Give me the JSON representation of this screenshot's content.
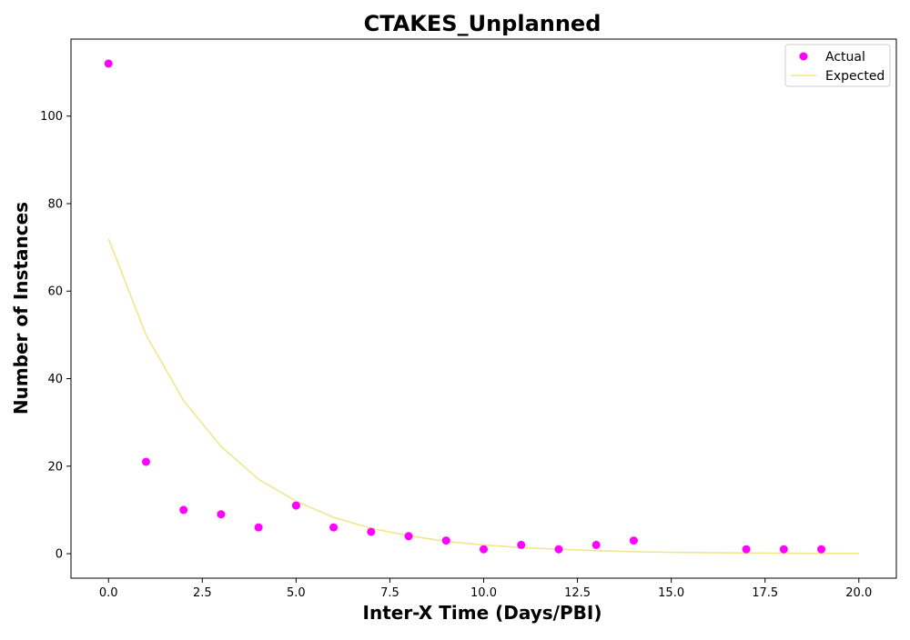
{
  "chart_data": {
    "type": "scatter",
    "title": "CTAKES_Unplanned",
    "xlabel": "Inter-X Time (Days/PBI)",
    "ylabel": "Number of Instances",
    "xlim": [
      -1,
      21
    ],
    "ylim": [
      -5.6,
      117.6
    ],
    "x_ticks": [
      0,
      2.5,
      5,
      7.5,
      10,
      12.5,
      15,
      17.5,
      20
    ],
    "x_tick_labels": [
      "0.0",
      "2.5",
      "5.0",
      "7.5",
      "10.0",
      "12.5",
      "15.0",
      "17.5",
      "20.0"
    ],
    "y_ticks": [
      0,
      20,
      40,
      60,
      80,
      100
    ],
    "y_tick_labels": [
      "0",
      "20",
      "40",
      "60",
      "80",
      "100"
    ],
    "grid": false,
    "legend_position": "top-right",
    "series": [
      {
        "name": "Actual",
        "kind": "scatter",
        "color": "#ff00ff",
        "x": [
          0,
          1,
          2,
          3,
          4,
          5,
          6,
          7,
          8,
          9,
          10,
          11,
          12,
          13,
          14,
          17,
          18,
          19
        ],
        "y": [
          112,
          21,
          10,
          9,
          6,
          11,
          6,
          5,
          4,
          3,
          1,
          2,
          1,
          2,
          3,
          1,
          1,
          1
        ]
      },
      {
        "name": "Expected",
        "kind": "line",
        "color": "#f0e68c",
        "x": [
          0,
          1,
          2,
          3,
          4,
          5,
          6,
          7,
          8,
          9,
          10,
          11,
          12,
          13,
          14,
          15,
          16,
          17,
          18,
          19,
          20
        ],
        "y": [
          72,
          50,
          35,
          24.5,
          17,
          12,
          8.3,
          5.8,
          4.1,
          2.8,
          2.0,
          1.4,
          1.0,
          0.7,
          0.45,
          0.3,
          0.22,
          0.15,
          0.1,
          0.07,
          0.05
        ]
      }
    ]
  }
}
